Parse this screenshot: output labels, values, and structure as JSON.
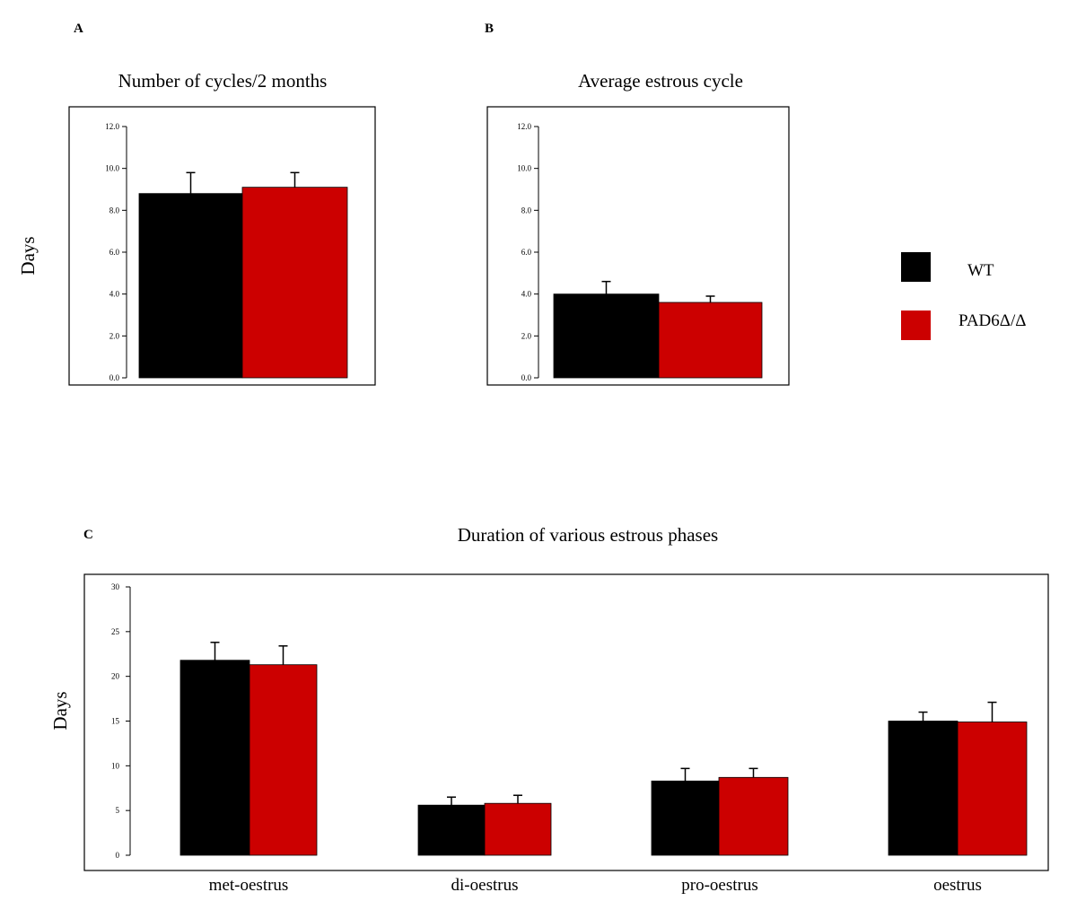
{
  "panels": {
    "a": {
      "letter": "A"
    },
    "b": {
      "letter": "B"
    },
    "c": {
      "letter": "C"
    }
  },
  "legend": [
    {
      "name": "WT",
      "color": "#000000"
    },
    {
      "name": "PAD6Δ/Δ",
      "color": "#cc0000"
    }
  ],
  "chart_data": [
    {
      "type": "bar",
      "title": "Number of cycles/2 months",
      "ylabel": "Days",
      "ylim": [
        0,
        12
      ],
      "yticks": [
        "0.0",
        "2.0",
        "4.0",
        "6.0",
        "8.0",
        "10.0",
        "12.0"
      ],
      "categories": [
        ""
      ],
      "series": [
        {
          "name": "WT",
          "color": "#000000",
          "values": [
            8.8
          ],
          "errors": [
            1.0
          ]
        },
        {
          "name": "PAD6Δ/Δ",
          "color": "#cc0000",
          "values": [
            9.1
          ],
          "errors": [
            0.7
          ]
        }
      ],
      "grid": false,
      "legend_position": "right"
    },
    {
      "type": "bar",
      "title": "Average estrous cycle",
      "ylabel": "",
      "ylim": [
        0,
        12
      ],
      "yticks": [
        "0.0",
        "2.0",
        "4.0",
        "6.0",
        "8.0",
        "10.0",
        "12.0"
      ],
      "categories": [
        ""
      ],
      "series": [
        {
          "name": "WT",
          "color": "#000000",
          "values": [
            4.0
          ],
          "errors": [
            0.6
          ]
        },
        {
          "name": "PAD6Δ/Δ",
          "color": "#cc0000",
          "values": [
            3.6
          ],
          "errors": [
            0.3
          ]
        }
      ],
      "grid": false,
      "legend_position": "right"
    },
    {
      "type": "bar",
      "title": "Duration of various estrous phases",
      "ylabel": "Days",
      "ylim": [
        0,
        30
      ],
      "yticks": [
        "0",
        "5",
        "10",
        "15",
        "20",
        "25",
        "30"
      ],
      "categories": [
        "met-oestrus",
        "di-oestrus",
        "pro-oestrus",
        "oestrus"
      ],
      "series": [
        {
          "name": "WT",
          "color": "#000000",
          "values": [
            21.8,
            5.6,
            8.3,
            15.0
          ],
          "errors": [
            2.0,
            0.9,
            1.4,
            1.0
          ]
        },
        {
          "name": "PAD6Δ/Δ",
          "color": "#cc0000",
          "values": [
            21.3,
            5.8,
            8.7,
            14.9
          ],
          "errors": [
            2.1,
            0.9,
            1.0,
            2.2
          ]
        }
      ],
      "grid": false,
      "legend_position": "right"
    }
  ]
}
